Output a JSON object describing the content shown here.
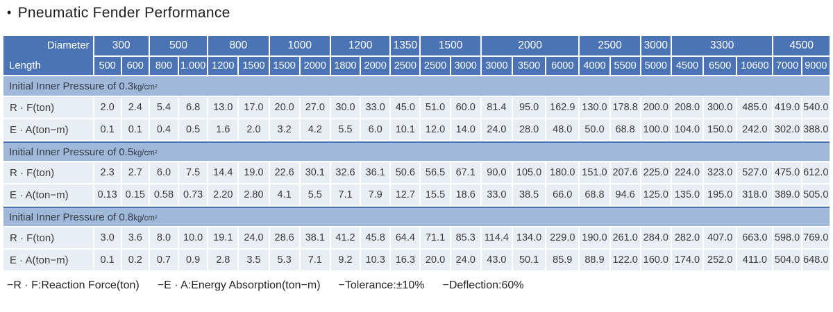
{
  "title_bullet": "•",
  "title": "Pneumatic Fender Performance",
  "colors": {
    "header_blue": "#4A74B5",
    "band_blue": "#A0B9DA",
    "cell_bg": "#E9EDF4",
    "text_dark": "#3A3A3A"
  },
  "table": {
    "corner_top": "Diameter",
    "corner_bottom": "Length",
    "diameter_groups": [
      {
        "label": "300",
        "span": 2
      },
      {
        "label": "500",
        "span": 2
      },
      {
        "label": "800",
        "span": 2
      },
      {
        "label": "1000",
        "span": 2
      },
      {
        "label": "1200",
        "span": 2
      },
      {
        "label": "1350",
        "span": 1
      },
      {
        "label": "1500",
        "span": 2
      },
      {
        "label": "2000",
        "span": 3
      },
      {
        "label": "2500",
        "span": 2
      },
      {
        "label": "3000",
        "span": 1
      },
      {
        "label": "3300",
        "span": 3
      },
      {
        "label": "4500",
        "span": 2
      }
    ],
    "lengths": [
      "500",
      "600",
      "800",
      "1.000",
      "1200",
      "1500",
      "1500",
      "2000",
      "1800",
      "2000",
      "2500",
      "2500",
      "3000",
      "3000",
      "3500",
      "6000",
      "4000",
      "5500",
      "5000",
      "4500",
      "6500",
      "10600",
      "7000",
      "9000"
    ],
    "sections": [
      {
        "title_prefix": "Initial Inner Pressure of 0.3",
        "title_unit": "kg/cm²",
        "rows": [
          {
            "label": "R · F(ton)",
            "values": [
              "2.0",
              "2.4",
              "5.4",
              "6.8",
              "13.0",
              "17.0",
              "20.0",
              "27.0",
              "30.0",
              "33.0",
              "45.0",
              "51.0",
              "60.0",
              "81.4",
              "95.0",
              "162.9",
              "130.0",
              "178.8",
              "200.0",
              "208.0",
              "300.0",
              "485.0",
              "419.0",
              "540.0"
            ]
          },
          {
            "label": "E · A(ton−m)",
            "values": [
              "0.1",
              "0.1",
              "0.4",
              "0.5",
              "1.6",
              "2.0",
              "3.2",
              "4.2",
              "5.5",
              "6.0",
              "10.1",
              "12.0",
              "14.0",
              "24.0",
              "28.0",
              "48.0",
              "50.0",
              "68.8",
              "100.0",
              "104.0",
              "150.0",
              "242.0",
              "302.0",
              "388.0"
            ]
          }
        ]
      },
      {
        "title_prefix": "Initial Inner Pressure of 0.5",
        "title_unit": "kg/cm²",
        "rows": [
          {
            "label": "R · F(ton)",
            "values": [
              "2.3",
              "2.7",
              "6.0",
              "7.5",
              "14.4",
              "19.0",
              "22.6",
              "30.1",
              "32.6",
              "36.1",
              "50.6",
              "56.5",
              "67.1",
              "90.0",
              "105.0",
              "180.0",
              "151.0",
              "207.6",
              "225.0",
              "224.0",
              "323.0",
              "527.0",
              "475.0",
              "612.0"
            ]
          },
          {
            "label": "E · A(ton−m)",
            "values": [
              "0.13",
              "0.15",
              "0.58",
              "0.73",
              "2.20",
              "2.80",
              "4.1",
              "5.5",
              "7.1",
              "7.9",
              "12.7",
              "15.5",
              "18.6",
              "33.0",
              "38.5",
              "66.0",
              "68.8",
              "94.6",
              "125.0",
              "135.0",
              "195.0",
              "318.0",
              "389.0",
              "505.0"
            ]
          }
        ]
      },
      {
        "title_prefix": "Initial Inner Pressure of 0.8",
        "title_unit": "kg/cm²",
        "rows": [
          {
            "label": "R · F(ton)",
            "values": [
              "3.0",
              "3.6",
              "8.0",
              "10.0",
              "19.1",
              "24.0",
              "28.6",
              "38.1",
              "41.2",
              "45.8",
              "64.4",
              "71.1",
              "85.3",
              "114.4",
              "134.0",
              "229.0",
              "190.0",
              "261.0",
              "284.0",
              "282.0",
              "407.0",
              "663.0",
              "598.0",
              "769.0"
            ]
          },
          {
            "label": "E · A(ton−m)",
            "values": [
              "0.1",
              "0.2",
              "0.7",
              "0.9",
              "2.8",
              "3.5",
              "5.3",
              "7.1",
              "9.2",
              "10.3",
              "16.3",
              "20.0",
              "24.0",
              "43.0",
              "50.1",
              "85.9",
              "88.9",
              "122.0",
              "160.0",
              "174.0",
              "252.0",
              "411.0",
              "504.0",
              "648.0"
            ]
          }
        ]
      }
    ]
  },
  "footnotes": [
    "−R · F:Reaction Force(ton)",
    "−E · A:Energy Absorption(ton−m)",
    "−Tolerance:±10%",
    "−Deflection:60%"
  ]
}
